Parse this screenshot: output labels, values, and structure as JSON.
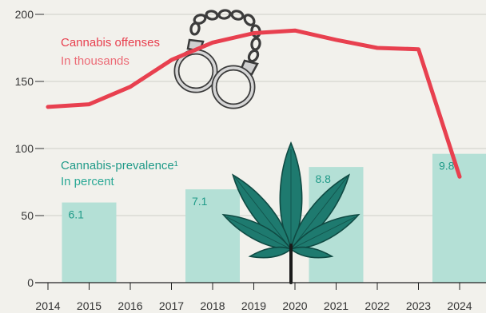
{
  "chart_data": {
    "type": "bar",
    "y_ticks": [
      "0",
      "50",
      "100",
      "150",
      "200"
    ],
    "ylim": [
      0,
      200
    ],
    "x_labels": [
      "2014",
      "2015",
      "2016",
      "2017",
      "2018",
      "2019",
      "2020",
      "2021",
      "2022",
      "2023",
      "2024"
    ],
    "offenses": {
      "title": "Cannabis offenses",
      "subtitle": "In thousands",
      "color": "#e8404f",
      "x": [
        2014,
        2015,
        2016,
        2017,
        2018,
        2019,
        2020,
        2021,
        2022,
        2023,
        2024
      ],
      "values": [
        131,
        133,
        146,
        166,
        179,
        186,
        188,
        181,
        175,
        174,
        79
      ]
    },
    "prevalence": {
      "title": "Cannabis-prevalence¹",
      "subtitle": "In percent",
      "color": "#b4e0d6",
      "label_color": "#1f9a88",
      "x": [
        2015,
        2018,
        2021,
        2024
      ],
      "labels": [
        "6.1",
        "7.1",
        "8.8",
        "9.8"
      ],
      "values": [
        6.1,
        7.1,
        8.8,
        9.8
      ]
    },
    "icons": [
      "handcuffs-icon",
      "cannabis-leaf-icon"
    ]
  }
}
